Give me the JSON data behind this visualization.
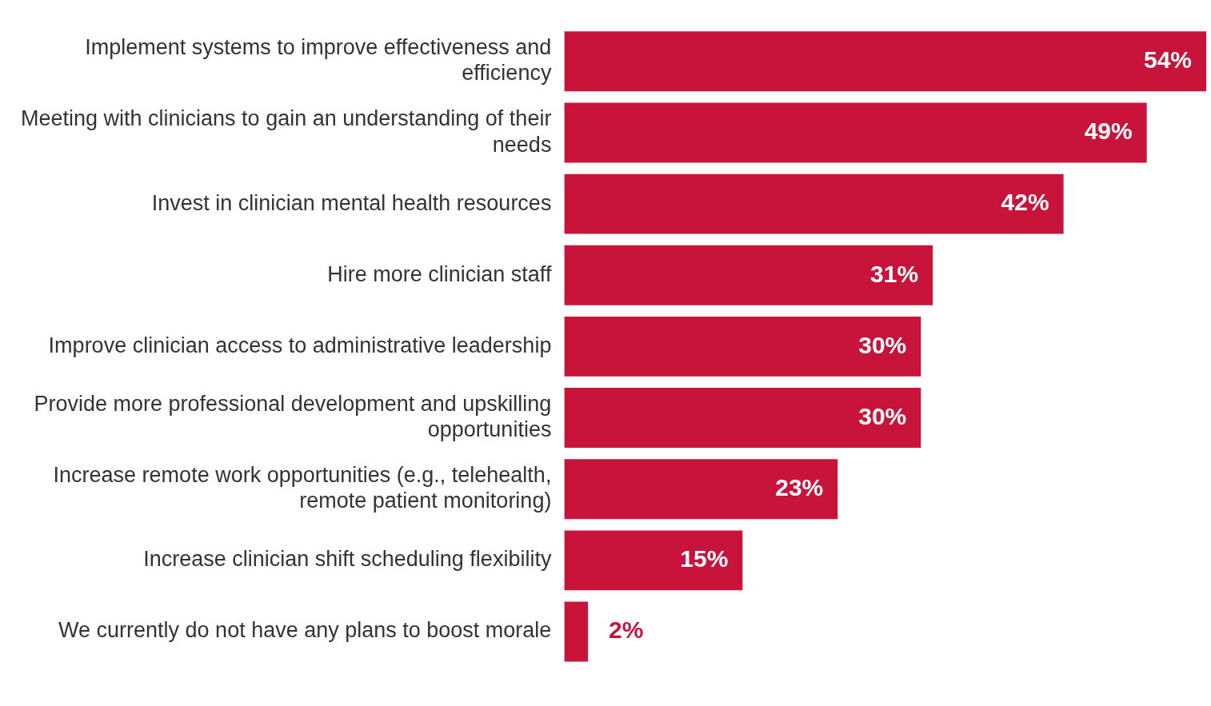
{
  "chart_data": {
    "type": "bar",
    "orientation": "horizontal",
    "categories": [
      "Implement systems to improve effectiveness and efficiency",
      "Meeting with clinicians to gain an understanding of their needs",
      "Invest in clinician mental health resources",
      "Hire more clinician staff",
      "Improve clinician access to administrative leadership",
      "Provide more professional development and upskilling opportunities",
      "Increase remote work opportunities (e.g., telehealth, remote patient monitoring)",
      "Increase clinician shift scheduling flexibility",
      "We currently do not have any plans to boost morale"
    ],
    "values": [
      54,
      49,
      42,
      31,
      30,
      30,
      23,
      15,
      2
    ],
    "value_labels": [
      "54%",
      "49%",
      "42%",
      "31%",
      "30%",
      "30%",
      "23%",
      "15%",
      "2%"
    ],
    "color": "#c8143a",
    "grid": false,
    "legend": false
  }
}
